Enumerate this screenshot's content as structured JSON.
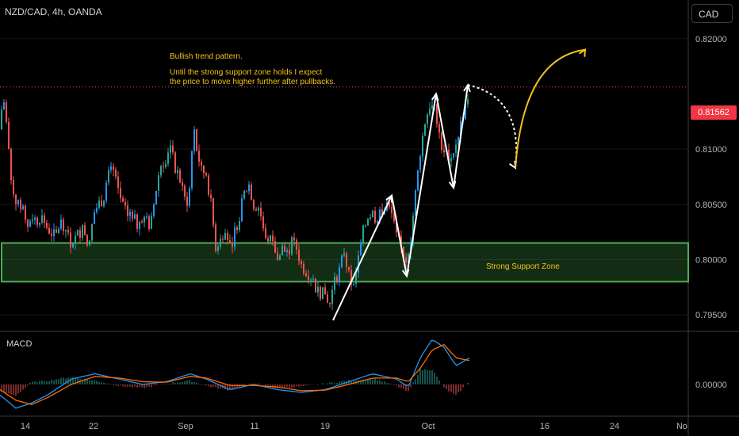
{
  "header": {
    "symbol": "NZD/CAD, 4h, OANDA",
    "currency": "CAD"
  },
  "annotations": {
    "note_title": "Bullish trend pattern.",
    "note_line1": "Until the strong support zone holds I expect",
    "note_line2": "the price to move higher further after pullbacks.",
    "zone_label": "Strong Support Zone"
  },
  "last_price_label": "0.81562",
  "macd": {
    "label": "MACD",
    "zero_label": "0.00000"
  },
  "colors": {
    "up": "#26a69a",
    "down": "#ef5350",
    "price_up_alt": "#2196f3",
    "zone": "#4caf50",
    "note": "#f2c21b",
    "macd_line": "#2196f3",
    "signal_line": "#ff6d00"
  },
  "chart_data": {
    "type": "candlestick",
    "symbol": "NZD/CAD",
    "timeframe": "4h",
    "y_ticks": [
      "0.82000",
      "0.81000",
      "0.80500",
      "0.80000",
      "0.79500"
    ],
    "x_ticks": [
      "14",
      "22",
      "Sep",
      "11",
      "19",
      "Oct",
      "16",
      "24",
      "No"
    ],
    "ylim": [
      0.7935,
      0.8235
    ],
    "last_price": 0.81562,
    "support_zone": [
      0.798,
      0.8015
    ],
    "price_path": [
      [
        0,
        0.8118
      ],
      [
        3,
        0.8145
      ],
      [
        6,
        0.8142
      ],
      [
        10,
        0.8105
      ],
      [
        14,
        0.8072
      ],
      [
        18,
        0.806
      ],
      [
        22,
        0.8048
      ],
      [
        28,
        0.805
      ],
      [
        34,
        0.803
      ],
      [
        40,
        0.804
      ],
      [
        46,
        0.8035
      ],
      [
        52,
        0.804
      ],
      [
        58,
        0.803
      ],
      [
        64,
        0.8025
      ],
      [
        70,
        0.802
      ],
      [
        76,
        0.8035
      ],
      [
        82,
        0.803
      ],
      [
        88,
        0.8015
      ],
      [
        94,
        0.8018
      ],
      [
        100,
        0.8025
      ],
      [
        106,
        0.8028
      ],
      [
        112,
        0.8008
      ],
      [
        118,
        0.8042
      ],
      [
        124,
        0.805
      ],
      [
        130,
        0.8055
      ],
      [
        136,
        0.8075
      ],
      [
        142,
        0.8082
      ],
      [
        148,
        0.8065
      ],
      [
        154,
        0.805
      ],
      [
        160,
        0.804
      ],
      [
        166,
        0.8045
      ],
      [
        172,
        0.803
      ],
      [
        178,
        0.804
      ],
      [
        184,
        0.8035
      ],
      [
        190,
        0.803
      ],
      [
        196,
        0.806
      ],
      [
        202,
        0.8085
      ],
      [
        208,
        0.809
      ],
      [
        214,
        0.8105
      ],
      [
        220,
        0.8085
      ],
      [
        226,
        0.8075
      ],
      [
        232,
        0.8055
      ],
      [
        238,
        0.8052
      ],
      [
        244,
        0.812
      ],
      [
        248,
        0.81
      ],
      [
        254,
        0.808
      ],
      [
        260,
        0.8078
      ],
      [
        266,
        0.805
      ],
      [
        272,
        0.8012
      ],
      [
        278,
        0.8018
      ],
      [
        284,
        0.803
      ],
      [
        290,
        0.801
      ],
      [
        296,
        0.8025
      ],
      [
        302,
        0.804
      ],
      [
        308,
        0.806
      ],
      [
        314,
        0.8068
      ],
      [
        320,
        0.805
      ],
      [
        326,
        0.8048
      ],
      [
        332,
        0.803
      ],
      [
        338,
        0.8015
      ],
      [
        344,
        0.802
      ],
      [
        350,
        0.8
      ],
      [
        356,
        0.801
      ],
      [
        362,
        0.8005
      ],
      [
        368,
        0.8015
      ],
      [
        374,
        0.801
      ],
      [
        380,
        0.7995
      ],
      [
        386,
        0.799
      ],
      [
        392,
        0.7985
      ],
      [
        398,
        0.7975
      ],
      [
        404,
        0.797
      ],
      [
        410,
        0.7968
      ],
      [
        416,
        0.796
      ],
      [
        422,
        0.798
      ],
      [
        428,
        0.799
      ],
      [
        434,
        0.8008
      ],
      [
        440,
        0.7985
      ],
      [
        446,
        0.7975
      ],
      [
        452,
        0.8
      ],
      [
        458,
        0.8025
      ],
      [
        464,
        0.804
      ],
      [
        470,
        0.8042
      ],
      [
        476,
        0.8035
      ],
      [
        482,
        0.8045
      ],
      [
        488,
        0.805
      ],
      [
        494,
        0.804
      ],
      [
        500,
        0.802
      ],
      [
        506,
        0.801
      ],
      [
        512,
        0.8
      ],
      [
        518,
        0.802
      ],
      [
        524,
        0.806
      ],
      [
        530,
        0.8098
      ],
      [
        536,
        0.8125
      ],
      [
        542,
        0.814
      ],
      [
        548,
        0.8135
      ],
      [
        552,
        0.812
      ],
      [
        558,
        0.81
      ],
      [
        564,
        0.8095
      ],
      [
        570,
        0.8085
      ],
      [
        576,
        0.811
      ],
      [
        582,
        0.8125
      ],
      [
        588,
        0.8145
      ],
      [
        592,
        0.815
      ]
    ],
    "macd_path": [
      [
        0,
        -0.0002
      ],
      [
        20,
        -0.00045
      ],
      [
        40,
        -0.00035
      ],
      [
        60,
        -0.0002
      ],
      [
        90,
        0.0001
      ],
      [
        120,
        0.0002
      ],
      [
        150,
        0.0001
      ],
      [
        180,
        0.0
      ],
      [
        210,
        5e-05
      ],
      [
        240,
        0.0002
      ],
      [
        260,
        0.0001
      ],
      [
        290,
        -0.0001
      ],
      [
        320,
        0.0
      ],
      [
        350,
        -0.0001
      ],
      [
        380,
        -0.00015
      ],
      [
        410,
        -0.0001
      ],
      [
        440,
        5e-05
      ],
      [
        470,
        0.0002
      ],
      [
        500,
        0.0001
      ],
      [
        515,
        -5e-05
      ],
      [
        530,
        0.0005
      ],
      [
        545,
        0.00085
      ],
      [
        560,
        0.0007
      ],
      [
        575,
        0.00035
      ],
      [
        592,
        0.0005
      ]
    ],
    "signal_path": [
      [
        0,
        -0.0001
      ],
      [
        20,
        -0.0003
      ],
      [
        40,
        -0.00038
      ],
      [
        60,
        -0.00025
      ],
      [
        90,
        0.0
      ],
      [
        120,
        0.00015
      ],
      [
        150,
        0.00012
      ],
      [
        180,
        5e-05
      ],
      [
        210,
        4e-05
      ],
      [
        240,
        0.00015
      ],
      [
        260,
        0.00012
      ],
      [
        290,
        -2e-05
      ],
      [
        320,
        -2e-05
      ],
      [
        350,
        -5e-05
      ],
      [
        380,
        -0.00012
      ],
      [
        410,
        -0.00011
      ],
      [
        440,
        0.0
      ],
      [
        470,
        0.00012
      ],
      [
        500,
        0.00012
      ],
      [
        515,
        5e-05
      ],
      [
        530,
        0.0003
      ],
      [
        545,
        0.00065
      ],
      [
        560,
        0.00075
      ],
      [
        575,
        0.0005
      ],
      [
        592,
        0.00045
      ]
    ],
    "macd_ylim": [
      -0.0006,
      0.001
    ],
    "drawn_arrows": [
      {
        "style": "solid",
        "color": "#ffffff",
        "from": [
          420,
          0.7945
        ],
        "to": [
          494,
          0.8058
        ]
      },
      {
        "style": "solid",
        "color": "#ffffff",
        "from": [
          494,
          0.8058
        ],
        "to": [
          513,
          0.7985
        ]
      },
      {
        "style": "solid",
        "color": "#ffffff",
        "from": [
          513,
          0.7985
        ],
        "to": [
          550,
          0.815
        ]
      },
      {
        "style": "solid",
        "color": "#ffffff",
        "from": [
          550,
          0.815
        ],
        "to": [
          572,
          0.8065
        ]
      },
      {
        "style": "solid",
        "color": "#ffffff",
        "from": [
          572,
          0.8065
        ],
        "to": [
          590,
          0.8158
        ]
      },
      {
        "style": "dashed",
        "color": "#ffffff",
        "from": [
          590,
          0.8158
        ],
        "to": [
          650,
          0.8083
        ]
      },
      {
        "style": "solid",
        "color": "#f2c21b",
        "from": [
          650,
          0.8083
        ],
        "to": [
          738,
          0.819
        ]
      }
    ]
  }
}
